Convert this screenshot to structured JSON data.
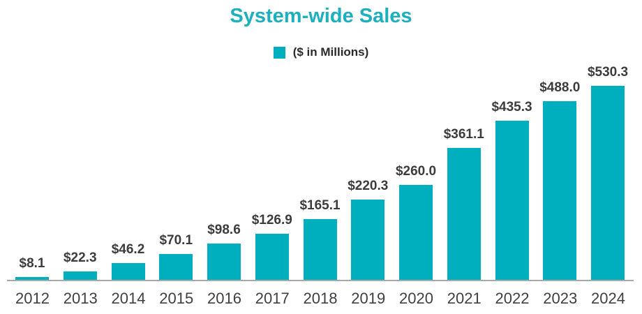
{
  "chart": {
    "title": "System-wide Sales",
    "legend_label": "($ in Millions)",
    "colors": {
      "bar": "#00AFBE",
      "title": "#1CAFBD",
      "axis": "#A8A8A8",
      "value_label": "#3C3C3C",
      "year_label": "#404040",
      "legend_text": "#2B2B2B"
    }
  },
  "chart_data": {
    "type": "bar",
    "title": "System-wide Sales",
    "legend": "($ in Millions)",
    "legend_position": "top-center",
    "categories": [
      "2012",
      "2013",
      "2014",
      "2015",
      "2016",
      "2017",
      "2018",
      "2019",
      "2020",
      "2021",
      "2022",
      "2023",
      "2024"
    ],
    "values": [
      8.1,
      22.3,
      46.2,
      70.1,
      98.6,
      126.9,
      165.1,
      220.3,
      260.0,
      361.1,
      435.3,
      488.0,
      530.3
    ],
    "value_labels": [
      "$8.1",
      "$22.3",
      "$46.2",
      "$70.1",
      "$98.6",
      "$126.9",
      "$165.1",
      "$220.3",
      "$260.0",
      "$361.1",
      "$435.3",
      "$488.0",
      "$530.3"
    ],
    "xlabel": "",
    "ylabel": "",
    "ylim": [
      0,
      530.3
    ],
    "grid": false
  }
}
